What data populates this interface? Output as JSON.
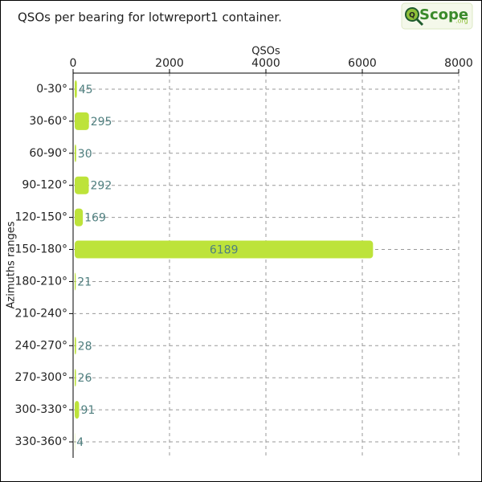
{
  "chart_data": {
    "type": "hbar",
    "title": "QSOs per bearing for lotwreport1 container.",
    "logo": {
      "mark": "Q",
      "name": "Scope",
      "suffix": ".org"
    },
    "x_label": "QSOs",
    "y_label": "Azimuths ranges",
    "categories": [
      "0-30°",
      "30-60°",
      "60-90°",
      "90-120°",
      "120-150°",
      "150-180°",
      "180-210°",
      "210-240°",
      "240-270°",
      "270-300°",
      "300-330°",
      "330-360°"
    ],
    "values": [
      45,
      295,
      30,
      292,
      169,
      6189,
      21,
      null,
      28,
      26,
      91,
      4
    ],
    "color": "#bde33a",
    "label_color": "#4f7f7f",
    "xlim": [
      0,
      8000
    ],
    "xticks": [
      0,
      2000,
      4000,
      6000,
      8000
    ],
    "grid": true
  }
}
